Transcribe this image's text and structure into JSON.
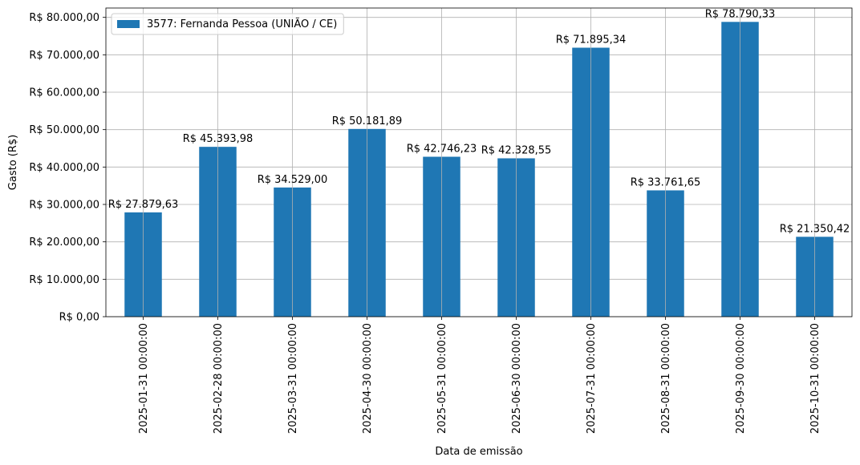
{
  "chart_data": {
    "type": "bar",
    "xlabel": "Data de emissão",
    "ylabel": "Gasto (R$)",
    "ylim": [
      0,
      82500
    ],
    "yticks": [
      0,
      10000,
      20000,
      30000,
      40000,
      50000,
      60000,
      70000,
      80000
    ],
    "ytick_labels": [
      "R$ 0,00",
      "R$ 10.000,00",
      "R$ 20.000,00",
      "R$ 30.000,00",
      "R$ 40.000,00",
      "R$ 50.000,00",
      "R$ 60.000,00",
      "R$ 70.000,00",
      "R$ 80.000,00"
    ],
    "grid": true,
    "legend_position": "top-left",
    "categories": [
      "2025-01-31 00:00:00",
      "2025-02-28 00:00:00",
      "2025-03-31 00:00:00",
      "2025-04-30 00:00:00",
      "2025-05-31 00:00:00",
      "2025-06-30 00:00:00",
      "2025-07-31 00:00:00",
      "2025-08-31 00:00:00",
      "2025-09-30 00:00:00",
      "2025-10-31 00:00:00"
    ],
    "series": [
      {
        "name": "3577: Fernanda Pessoa (UNIÃO / CE)",
        "color": "#1f77b4",
        "values": [
          27879.63,
          45393.98,
          34529.0,
          50181.89,
          42746.23,
          42328.55,
          71895.34,
          33761.65,
          78790.33,
          21350.42
        ],
        "labels": [
          "R$ 27.879,63",
          "R$ 45.393,98",
          "R$ 34.529,00",
          "R$ 50.181,89",
          "R$ 42.746,23",
          "R$ 42.328,55",
          "R$ 71.895,34",
          "R$ 33.761,65",
          "R$ 78.790,33",
          "R$ 21.350,42"
        ]
      }
    ]
  }
}
